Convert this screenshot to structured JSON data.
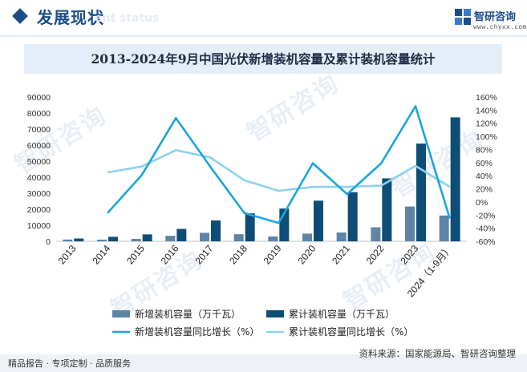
{
  "header": {
    "section_title": "发展现状",
    "section_sub": "ent status",
    "brand_name": "智研咨询",
    "brand_url": "www.chyxx.com"
  },
  "watermark": "智研咨询",
  "footer": {
    "left": "精品报告 · 专项定制 · 品质服务",
    "source": "资料来源：国家能源局、智研咨询整理"
  },
  "colors": {
    "bar_new": "#5e84a6",
    "bar_cum": "#0e4d76",
    "line_new": "#1ba5e0",
    "line_cum": "#8dd1ee"
  },
  "chart_data": {
    "type": "bar",
    "title": "2013-2024年9月中国光伏新增装机容量及累计装机容量统计",
    "categories": [
      "2013",
      "2014",
      "2015",
      "2016",
      "2017",
      "2018",
      "2019",
      "2020",
      "2021",
      "2022",
      "2023",
      "2024（1-9月）"
    ],
    "series": [
      {
        "name": "新增装机容量（万千瓦）",
        "type": "bar",
        "axis": "left",
        "values": [
          1095,
          1060,
          1513,
          3454,
          5306,
          4426,
          3011,
          4820,
          5488,
          8741,
          21688,
          16088
        ]
      },
      {
        "name": "累计装机容量（万千瓦）",
        "type": "bar",
        "axis": "left",
        "values": [
          1745,
          2805,
          4318,
          7742,
          13025,
          17446,
          20430,
          25343,
          30656,
          39261,
          60949,
          77292
        ]
      },
      {
        "name": "新增装机容量同比增长（%）",
        "type": "line",
        "axis": "right",
        "values": [
          null,
          -17,
          41,
          128,
          54,
          -17,
          -32,
          59,
          12,
          59,
          146,
          -25
        ]
      },
      {
        "name": "累计装机容量同比增长（%）",
        "type": "line",
        "axis": "right",
        "values": [
          null,
          45,
          54,
          79,
          68,
          33,
          17,
          23,
          23,
          25,
          55,
          23
        ]
      }
    ],
    "left_axis": {
      "min": 0,
      "max": 90000,
      "step": 10000,
      "ticks": [
        "0",
        "10000",
        "20000",
        "30000",
        "40000",
        "50000",
        "60000",
        "70000",
        "80000",
        "90000"
      ]
    },
    "right_axis": {
      "min": -60,
      "max": 160,
      "step": 20,
      "ticks": [
        "-60%",
        "-40%",
        "-20%",
        "0%",
        "20%",
        "40%",
        "60%",
        "80%",
        "100%",
        "120%",
        "140%",
        "160%"
      ]
    },
    "legend": [
      "新增装机容量（万千瓦）",
      "累计装机容量（万千瓦）",
      "新增装机容量同比增长（%）",
      "累计装机容量同比增长（%）"
    ],
    "legend_position": "bottom",
    "grid": false
  }
}
